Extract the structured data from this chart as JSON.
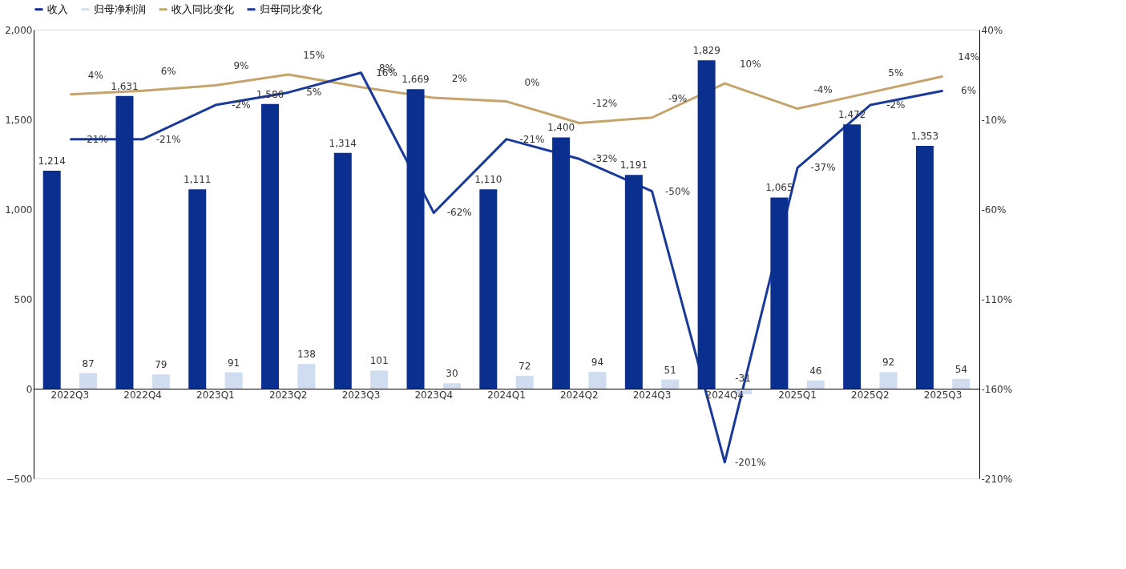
{
  "chart_data": {
    "type": "bar",
    "categories": [
      "2022Q3",
      "2022Q4",
      "2023Q1",
      "2023Q2",
      "2023Q3",
      "2023Q4",
      "2024Q1",
      "2024Q2",
      "2024Q3",
      "2024Q4",
      "2025Q1",
      "2025Q2",
      "2025Q3"
    ],
    "series": [
      {
        "name": "收入",
        "color": "#0b2f8f",
        "values": [
          1214,
          1631,
          1111,
          1586,
          1314,
          1669,
          1110,
          1400,
          1191,
          1829,
          1065,
          1472,
          1353
        ],
        "value_labels": [
          "1,214",
          "1,631",
          "1,111",
          "1,586",
          "1,314",
          "1,669",
          "1,110",
          "1,400",
          "1,191",
          "1,829",
          "1,065",
          "1,472",
          "1,353"
        ]
      },
      {
        "name": "归母净利润",
        "color": "#d0dcf0",
        "values": [
          87,
          79,
          91,
          138,
          101,
          30,
          72,
          94,
          51,
          -31,
          46,
          92,
          54
        ],
        "value_labels": [
          "87",
          "79",
          "91",
          "138",
          "101",
          "30",
          "72",
          "94",
          "51",
          "-31",
          "46",
          "92",
          "54"
        ]
      },
      {
        "name": "收入同比变化",
        "type": "line",
        "axis": "y2",
        "color": "#c4a46c",
        "values": [
          4,
          6,
          9,
          15,
          8,
          2,
          0,
          -12,
          -9,
          10,
          -4,
          5,
          14
        ],
        "value_labels": [
          "4%",
          "6%",
          "9%",
          "15%",
          "8%",
          "2%",
          "0%",
          "-12%",
          "-9%",
          "10%",
          "-4%",
          "5%",
          "14%"
        ]
      },
      {
        "name": "归母同比变化",
        "type": "line",
        "axis": "y2",
        "color": "#1a3a9a",
        "values": [
          -21,
          -21,
          -2,
          5,
          16,
          -62,
          -21,
          -32,
          -50,
          -201,
          -37,
          -2,
          6
        ],
        "value_labels": [
          "-21%",
          "-21%",
          "-2%",
          "5%",
          "16%",
          "-62%",
          "-21%",
          "-32%",
          "-50%",
          "-201%",
          "-37%",
          "-2%",
          "6%"
        ]
      }
    ],
    "ylim": [
      -500,
      2000
    ],
    "yticks": [
      -500,
      0,
      500,
      {
        "value": 1000,
        "label": "1,000"
      },
      {
        "value": 1500,
        "label": "1,500"
      },
      {
        "value": 2000,
        "label": "2,000"
      }
    ],
    "y2lim": [
      -210,
      40
    ],
    "y2ticks": [
      {
        "value": -210,
        "label": "-210%"
      },
      {
        "value": -160,
        "label": "-160%"
      },
      {
        "value": -110,
        "label": "-110%"
      },
      {
        "value": -60,
        "label": "-60%"
      },
      {
        "value": -10,
        "label": "-10%"
      },
      {
        "value": 40,
        "label": "40%"
      }
    ],
    "legend": "top",
    "grid": false
  }
}
